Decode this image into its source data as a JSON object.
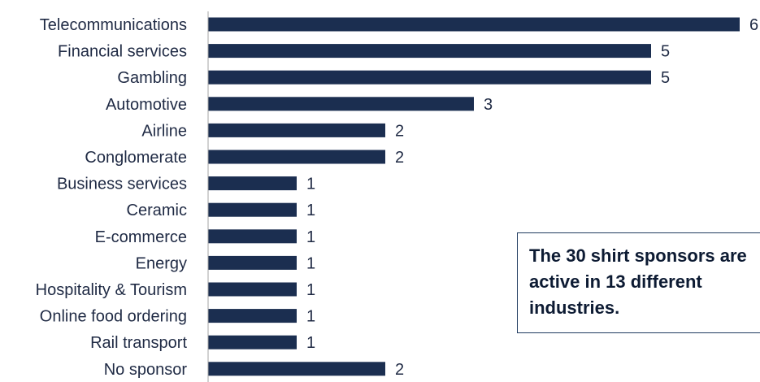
{
  "chart_data": {
    "type": "bar",
    "orientation": "horizontal",
    "categories": [
      "Telecommunications",
      "Financial services",
      "Gambling",
      "Automotive",
      "Airline",
      "Conglomerate",
      "Business services",
      "Ceramic",
      "E-commerce",
      "Energy",
      "Hospitality & Tourism",
      "Online food ordering",
      "Rail transport",
      "No sponsor"
    ],
    "values": [
      6,
      5,
      5,
      3,
      2,
      2,
      1,
      1,
      1,
      1,
      1,
      1,
      1,
      2
    ],
    "title": "",
    "xlabel": "",
    "ylabel": "",
    "xlim": [
      0,
      6
    ],
    "grid": false,
    "data_labels": true,
    "bar_color": "#1b2e50"
  },
  "callout": {
    "text": "The 30 shirt sponsors are active in 13 different industries."
  }
}
